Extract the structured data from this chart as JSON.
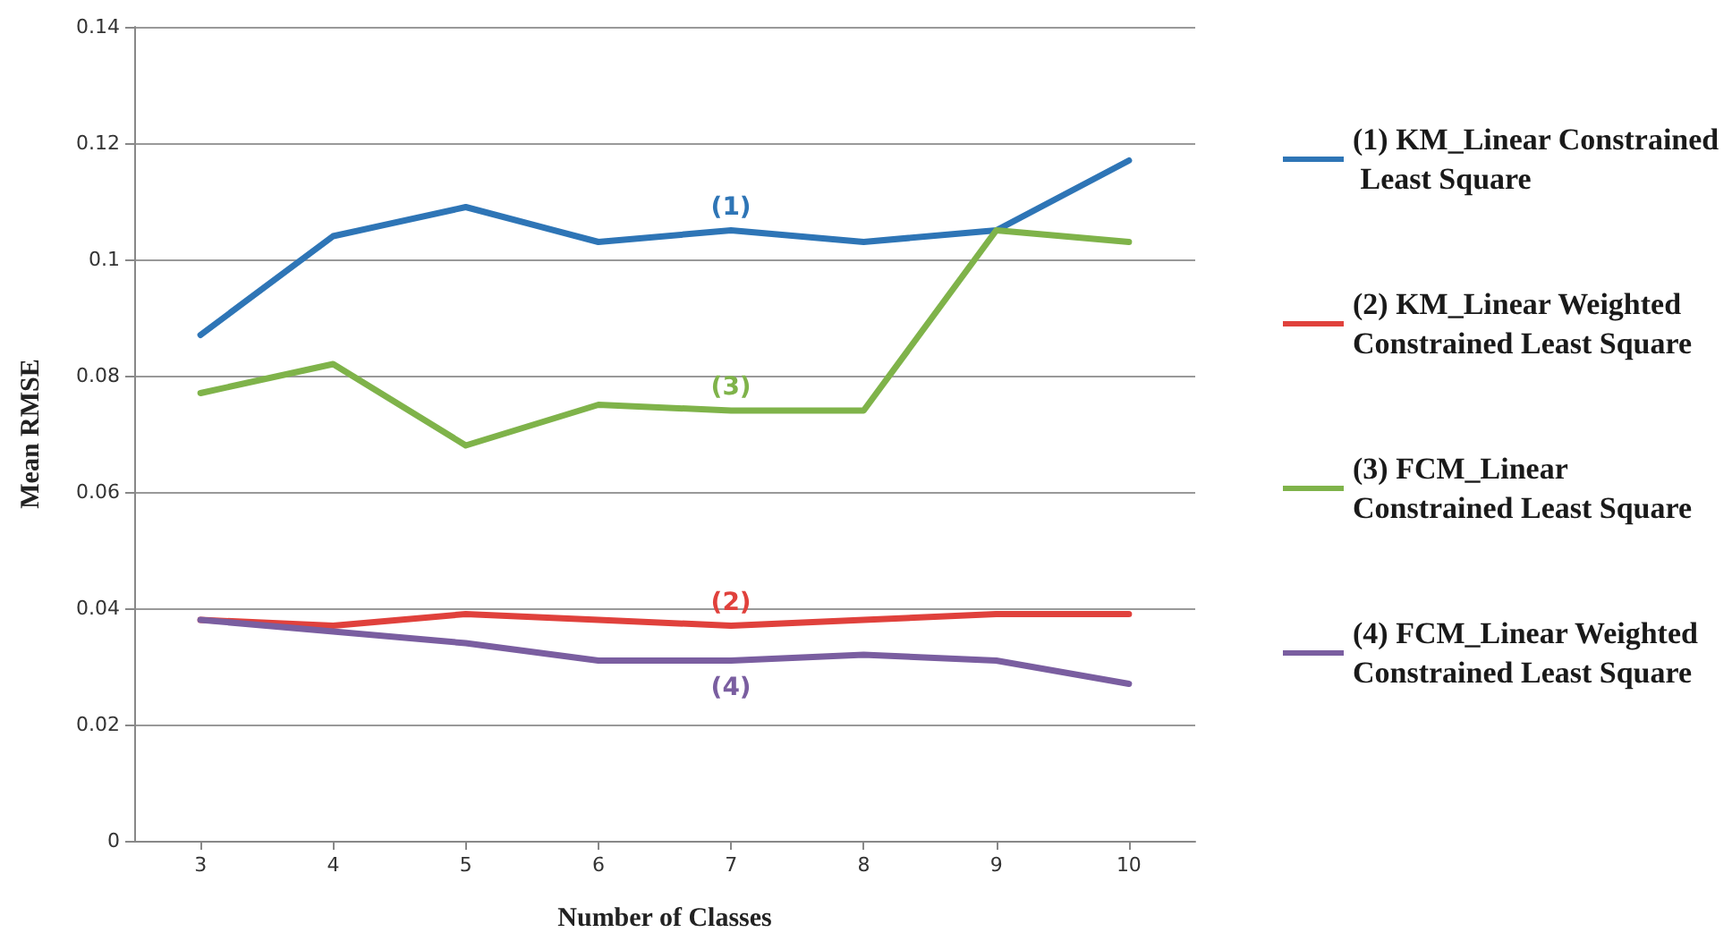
{
  "chart_data": {
    "type": "line",
    "xlabel": "Number of Classes",
    "ylabel": "Mean RMSE",
    "categories": [
      "3",
      "4",
      "5",
      "6",
      "7",
      "8",
      "9",
      "10"
    ],
    "series": [
      {
        "name": "(1) KM_Linear Constrained Least Square",
        "color": "#2e75b6",
        "values": [
          0.087,
          0.104,
          0.109,
          0.103,
          0.105,
          0.103,
          0.105,
          0.117
        ]
      },
      {
        "name": "(2) KM_Linear Weighted Constrained Least Square",
        "color": "#e0413c",
        "values": [
          0.038,
          0.037,
          0.039,
          0.038,
          0.037,
          0.038,
          0.039,
          0.039
        ]
      },
      {
        "name": "(3) FCM_Linear Constrained Least Square",
        "color": "#7fb34a",
        "values": [
          0.077,
          0.082,
          0.068,
          0.075,
          0.074,
          0.074,
          0.105,
          0.103
        ]
      },
      {
        "name": "(4) FCM_Linear Weighted Constrained Least Square",
        "color": "#7a5ea0",
        "values": [
          0.038,
          0.036,
          0.034,
          0.031,
          0.031,
          0.032,
          0.031,
          0.027
        ]
      }
    ],
    "annotations": [
      {
        "text": "(1)",
        "x": "7",
        "y": 0.105
      },
      {
        "text": "(2)",
        "x": "7",
        "y": 0.037
      },
      {
        "text": "(3)",
        "x": "7",
        "y": 0.074
      },
      {
        "text": "(4)",
        "x": "7",
        "y": 0.031
      }
    ],
    "ylim": [
      0,
      0.14
    ],
    "yticks": [
      0,
      0.02,
      0.04,
      0.06,
      0.08,
      0.1,
      0.12,
      0.14
    ],
    "grid": "y",
    "legend": "right",
    "marker": "none",
    "line_style": "solid"
  }
}
